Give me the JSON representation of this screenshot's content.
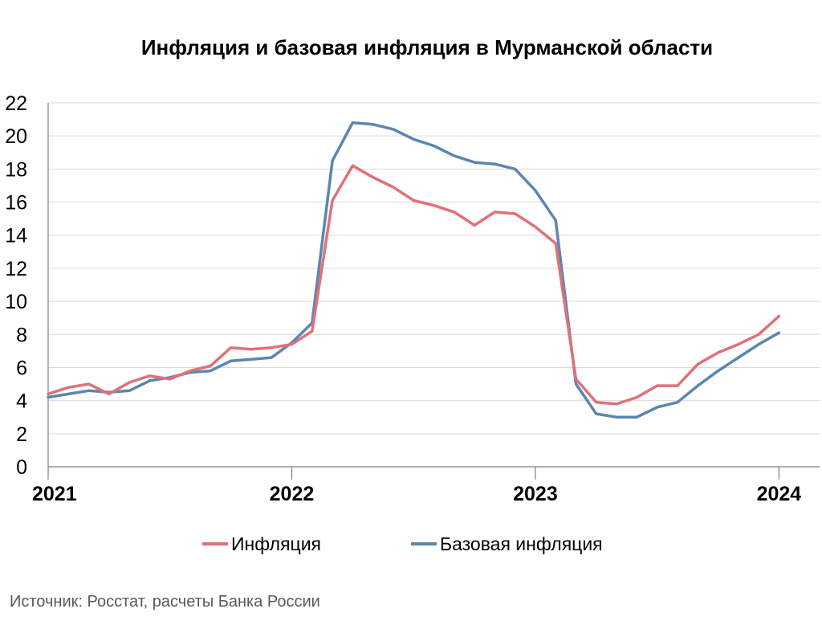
{
  "source_note": "Источник: Росстат, расчеты Банка России",
  "colors": {
    "inflation": "#E07179",
    "core": "#5B86B2",
    "grid": "#D9D9D9",
    "axis": "#808080"
  },
  "chart_data": {
    "type": "line",
    "title": "Инфляция и базовая инфляция в Мурманской области",
    "xlabel": "",
    "ylabel": "",
    "ylim": [
      0,
      22
    ],
    "yticks": [
      0,
      2,
      4,
      6,
      8,
      10,
      12,
      14,
      16,
      18,
      20,
      22
    ],
    "xticks": [
      "2021",
      "2022",
      "2023",
      "2024"
    ],
    "xrange": [
      "2021-01",
      "2024-03"
    ],
    "grid": true,
    "legend_position": "bottom",
    "months": [
      "2021-01",
      "2021-02",
      "2021-03",
      "2021-04",
      "2021-05",
      "2021-06",
      "2021-07",
      "2021-08",
      "2021-09",
      "2021-10",
      "2021-11",
      "2021-12",
      "2022-01",
      "2022-02",
      "2022-03",
      "2022-04",
      "2022-05",
      "2022-06",
      "2022-07",
      "2022-08",
      "2022-09",
      "2022-10",
      "2022-11",
      "2022-12",
      "2023-01",
      "2023-02",
      "2023-03",
      "2023-04",
      "2023-05",
      "2023-06",
      "2023-07",
      "2023-08",
      "2023-09",
      "2023-10",
      "2023-11",
      "2023-12",
      "2024-01"
    ],
    "series": [
      {
        "name": "Инфляция",
        "color": "#E07179",
        "values": [
          4.4,
          4.8,
          5.0,
          4.4,
          5.1,
          5.5,
          5.3,
          5.8,
          6.1,
          7.2,
          7.1,
          7.2,
          7.4,
          8.2,
          16.1,
          18.2,
          17.5,
          16.9,
          16.1,
          15.8,
          15.4,
          14.6,
          15.4,
          15.3,
          14.5,
          13.5,
          5.3,
          3.9,
          3.8,
          4.2,
          4.9,
          4.9,
          6.2,
          6.9,
          7.4,
          8.0,
          9.1
        ]
      },
      {
        "name": "Базовая инфляция",
        "color": "#5B86B2",
        "values": [
          4.2,
          4.4,
          4.6,
          4.5,
          4.6,
          5.2,
          5.4,
          5.7,
          5.8,
          6.4,
          6.5,
          6.6,
          7.5,
          8.7,
          18.5,
          20.8,
          20.7,
          20.4,
          19.8,
          19.4,
          18.8,
          18.4,
          18.3,
          18.0,
          16.7,
          14.9,
          5.0,
          3.2,
          3.0,
          3.0,
          3.6,
          3.9,
          4.9,
          5.8,
          6.6,
          7.4,
          8.1
        ]
      }
    ]
  }
}
